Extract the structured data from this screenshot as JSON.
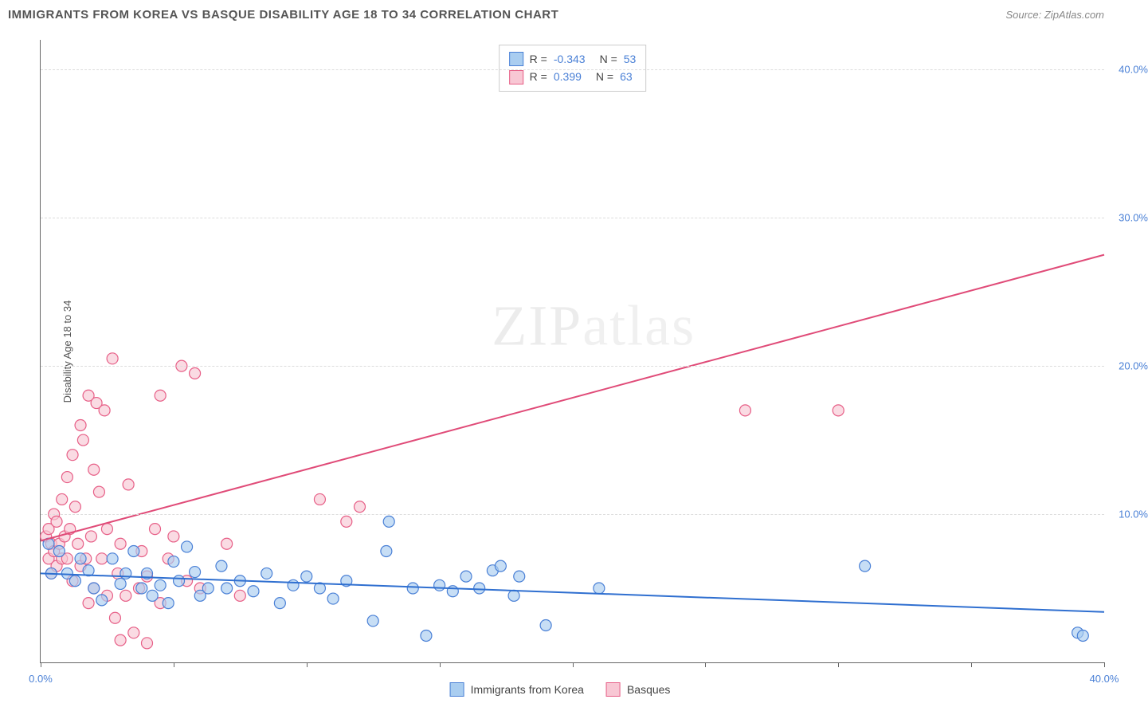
{
  "title": "IMMIGRANTS FROM KOREA VS BASQUE DISABILITY AGE 18 TO 34 CORRELATION CHART",
  "source": "Source: ZipAtlas.com",
  "ylabel": "Disability Age 18 to 34",
  "watermark_a": "ZIP",
  "watermark_b": "atlas",
  "chart": {
    "type": "scatter",
    "xlim": [
      0,
      40
    ],
    "ylim": [
      0,
      42
    ],
    "xtick_positions": [
      0,
      5,
      10,
      15,
      20,
      25,
      30,
      35,
      40
    ],
    "xtick_labels": {
      "0": "0.0%",
      "40": "40.0%"
    },
    "ytick_positions": [
      10,
      20,
      30,
      40
    ],
    "ytick_labels": [
      "10.0%",
      "20.0%",
      "30.0%",
      "40.0%"
    ],
    "grid_color": "#dddddd",
    "axis_color": "#666666",
    "background_color": "#ffffff",
    "series": [
      {
        "name": "Immigrants from Korea",
        "fill": "#a9cdf0",
        "stroke": "#4a80d6",
        "trend_color": "#2f6fd0",
        "trend": {
          "x1": 0,
          "y1": 6.0,
          "x2": 40,
          "y2": 3.4
        },
        "R": "-0.343",
        "N": "53",
        "points": [
          [
            0.3,
            8.0
          ],
          [
            0.4,
            6.0
          ],
          [
            0.7,
            7.5
          ],
          [
            1.0,
            6.0
          ],
          [
            1.3,
            5.5
          ],
          [
            1.5,
            7.0
          ],
          [
            1.8,
            6.2
          ],
          [
            2.0,
            5.0
          ],
          [
            2.3,
            4.2
          ],
          [
            2.7,
            7.0
          ],
          [
            3.0,
            5.3
          ],
          [
            3.2,
            6.0
          ],
          [
            3.5,
            7.5
          ],
          [
            3.8,
            5.0
          ],
          [
            4.0,
            6.0
          ],
          [
            4.2,
            4.5
          ],
          [
            4.5,
            5.2
          ],
          [
            4.8,
            4.0
          ],
          [
            5.0,
            6.8
          ],
          [
            5.2,
            5.5
          ],
          [
            5.5,
            7.8
          ],
          [
            5.8,
            6.1
          ],
          [
            6.0,
            4.5
          ],
          [
            6.3,
            5.0
          ],
          [
            6.8,
            6.5
          ],
          [
            7.0,
            5.0
          ],
          [
            7.5,
            5.5
          ],
          [
            8.0,
            4.8
          ],
          [
            8.5,
            6.0
          ],
          [
            9.0,
            4.0
          ],
          [
            9.5,
            5.2
          ],
          [
            10.0,
            5.8
          ],
          [
            10.5,
            5.0
          ],
          [
            11.0,
            4.3
          ],
          [
            11.5,
            5.5
          ],
          [
            12.5,
            2.8
          ],
          [
            13.0,
            7.5
          ],
          [
            13.1,
            9.5
          ],
          [
            14.0,
            5.0
          ],
          [
            14.5,
            1.8
          ],
          [
            15.0,
            5.2
          ],
          [
            15.5,
            4.8
          ],
          [
            16.0,
            5.8
          ],
          [
            16.5,
            5.0
          ],
          [
            17.0,
            6.2
          ],
          [
            17.3,
            6.5
          ],
          [
            17.8,
            4.5
          ],
          [
            18.0,
            5.8
          ],
          [
            19.0,
            2.5
          ],
          [
            21.0,
            5.0
          ],
          [
            31.0,
            6.5
          ],
          [
            39.0,
            2.0
          ],
          [
            39.2,
            1.8
          ]
        ]
      },
      {
        "name": "Basques",
        "fill": "#f8c7d4",
        "stroke": "#e75f87",
        "trend_color": "#e04b78",
        "trend": {
          "x1": 0,
          "y1": 8.2,
          "x2": 40,
          "y2": 27.5
        },
        "R": "0.399",
        "N": "63",
        "points": [
          [
            0.2,
            8.5
          ],
          [
            0.3,
            7.0
          ],
          [
            0.3,
            9.0
          ],
          [
            0.4,
            6.0
          ],
          [
            0.4,
            8.0
          ],
          [
            0.5,
            10.0
          ],
          [
            0.5,
            7.5
          ],
          [
            0.6,
            9.5
          ],
          [
            0.6,
            6.5
          ],
          [
            0.7,
            8.0
          ],
          [
            0.8,
            7.0
          ],
          [
            0.8,
            11.0
          ],
          [
            0.9,
            8.5
          ],
          [
            1.0,
            12.5
          ],
          [
            1.0,
            7.0
          ],
          [
            1.1,
            9.0
          ],
          [
            1.2,
            14.0
          ],
          [
            1.2,
            5.5
          ],
          [
            1.3,
            10.5
          ],
          [
            1.4,
            8.0
          ],
          [
            1.5,
            16.0
          ],
          [
            1.5,
            6.5
          ],
          [
            1.6,
            15.0
          ],
          [
            1.7,
            7.0
          ],
          [
            1.8,
            4.0
          ],
          [
            1.8,
            18.0
          ],
          [
            1.9,
            8.5
          ],
          [
            2.0,
            13.0
          ],
          [
            2.0,
            5.0
          ],
          [
            2.1,
            17.5
          ],
          [
            2.2,
            11.5
          ],
          [
            2.3,
            7.0
          ],
          [
            2.4,
            17.0
          ],
          [
            2.5,
            4.5
          ],
          [
            2.5,
            9.0
          ],
          [
            2.7,
            20.5
          ],
          [
            2.8,
            3.0
          ],
          [
            2.9,
            6.0
          ],
          [
            3.0,
            8.0
          ],
          [
            3.0,
            1.5
          ],
          [
            3.2,
            4.5
          ],
          [
            3.3,
            12.0
          ],
          [
            3.5,
            2.0
          ],
          [
            3.7,
            5.0
          ],
          [
            3.8,
            7.5
          ],
          [
            4.0,
            5.8
          ],
          [
            4.0,
            1.3
          ],
          [
            4.3,
            9.0
          ],
          [
            4.5,
            4.0
          ],
          [
            4.5,
            18.0
          ],
          [
            4.8,
            7.0
          ],
          [
            5.0,
            8.5
          ],
          [
            5.3,
            20.0
          ],
          [
            5.5,
            5.5
          ],
          [
            5.8,
            19.5
          ],
          [
            6.0,
            5.0
          ],
          [
            7.0,
            8.0
          ],
          [
            7.5,
            4.5
          ],
          [
            10.5,
            11.0
          ],
          [
            11.5,
            9.5
          ],
          [
            12.0,
            10.5
          ],
          [
            26.5,
            17.0
          ],
          [
            30.0,
            17.0
          ]
        ]
      }
    ]
  },
  "legend_bottom": [
    {
      "label": "Immigrants from Korea",
      "fill": "#a9cdf0",
      "stroke": "#4a80d6"
    },
    {
      "label": "Basques",
      "fill": "#f8c7d4",
      "stroke": "#e75f87"
    }
  ]
}
